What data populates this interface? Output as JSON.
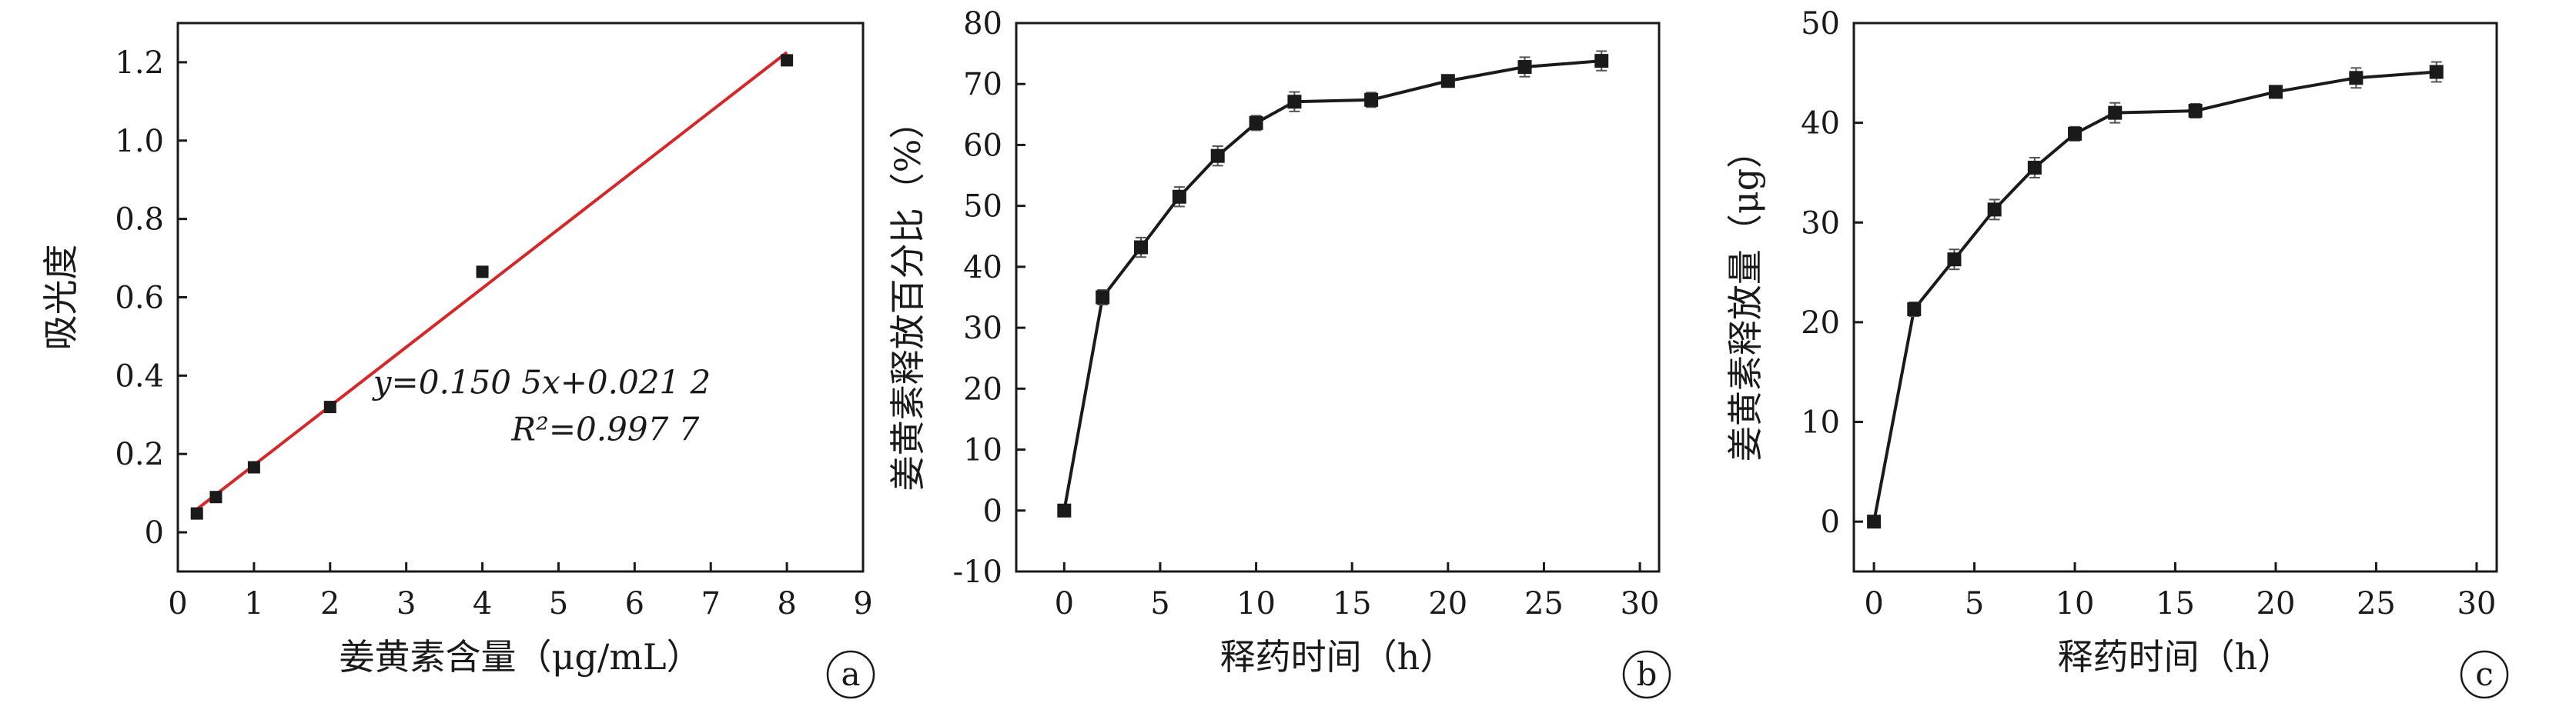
{
  "chart_data": [
    {
      "type": "scatter",
      "panel_label": "a",
      "xlabel": "姜黄素含量（μg/mL）",
      "ylabel": "吸光度",
      "xlim": [
        0,
        9
      ],
      "ylim": [
        -0.1,
        1.3
      ],
      "xticks": [
        0,
        1,
        2,
        3,
        4,
        5,
        6,
        7,
        8,
        9
      ],
      "xtick_labels": [
        "0",
        "1",
        "2",
        "3",
        "4",
        "5",
        "6",
        "7",
        "8",
        "9"
      ],
      "yticks": [
        0,
        0.2,
        0.4,
        0.6,
        0.8,
        1.0,
        1.2
      ],
      "ytick_labels": [
        "0",
        "0.2",
        "0.4",
        "0.6",
        "0.8",
        "1.0",
        "1.2"
      ],
      "series": [
        {
          "x": [
            0.25,
            0.5,
            1,
            2,
            4,
            8
          ],
          "y": [
            0.048,
            0.09,
            0.166,
            0.32,
            0.665,
            1.205
          ]
        }
      ],
      "fit_line": {
        "slope": 0.1505,
        "intercept": 0.0212,
        "x_range": [
          0.25,
          8
        ],
        "color": "#d62728"
      },
      "annotations": [
        "y=0.150 5x+0.021 2",
        "R²=0.997 7"
      ],
      "grid": false
    },
    {
      "type": "line",
      "panel_label": "b",
      "xlabel": "释药时间（h）",
      "ylabel": "姜黄素释放百分比（%）",
      "xlim": [
        -2.5,
        31
      ],
      "ylim": [
        -10,
        80
      ],
      "xticks": [
        0,
        5,
        10,
        15,
        20,
        25,
        30
      ],
      "xtick_labels": [
        "0",
        "5",
        "10",
        "15",
        "20",
        "25",
        "30"
      ],
      "yticks": [
        -10,
        0,
        10,
        20,
        30,
        40,
        50,
        60,
        70,
        80
      ],
      "ytick_labels": [
        "-10",
        "0",
        "10",
        "20",
        "30",
        "40",
        "50",
        "60",
        "70",
        "80"
      ],
      "series": [
        {
          "x": [
            0,
            2,
            4,
            6,
            8,
            10,
            12,
            16,
            20,
            24,
            28
          ],
          "y": [
            0,
            35,
            43.2,
            51.5,
            58.2,
            63.6,
            67.1,
            67.4,
            70.5,
            72.8,
            73.8
          ],
          "error": [
            0,
            1.2,
            1.6,
            1.6,
            1.6,
            1.2,
            1.6,
            1.2,
            0.8,
            1.6,
            1.6
          ]
        }
      ],
      "grid": false
    },
    {
      "type": "line",
      "panel_label": "c",
      "xlabel": "释药时间（h）",
      "ylabel": "姜黄素释放量（μg）",
      "xlim": [
        -1,
        31
      ],
      "ylim": [
        -5,
        50
      ],
      "xticks": [
        0,
        5,
        10,
        15,
        20,
        25,
        30
      ],
      "xtick_labels": [
        "0",
        "5",
        "10",
        "15",
        "20",
        "25",
        "30"
      ],
      "yticks": [
        0,
        10,
        20,
        30,
        40,
        50
      ],
      "ytick_labels": [
        "0",
        "10",
        "20",
        "30",
        "40",
        "50"
      ],
      "series": [
        {
          "x": [
            0,
            2,
            4,
            6,
            8,
            10,
            12,
            16,
            20,
            24,
            28
          ],
          "y": [
            0,
            21.3,
            26.3,
            31.3,
            35.5,
            38.9,
            41,
            41.2,
            43.1,
            44.5,
            45.1
          ],
          "error": [
            0,
            0.7,
            1,
            1,
            1,
            0.7,
            1,
            0.7,
            0.5,
            1,
            1
          ]
        }
      ],
      "grid": false
    }
  ]
}
